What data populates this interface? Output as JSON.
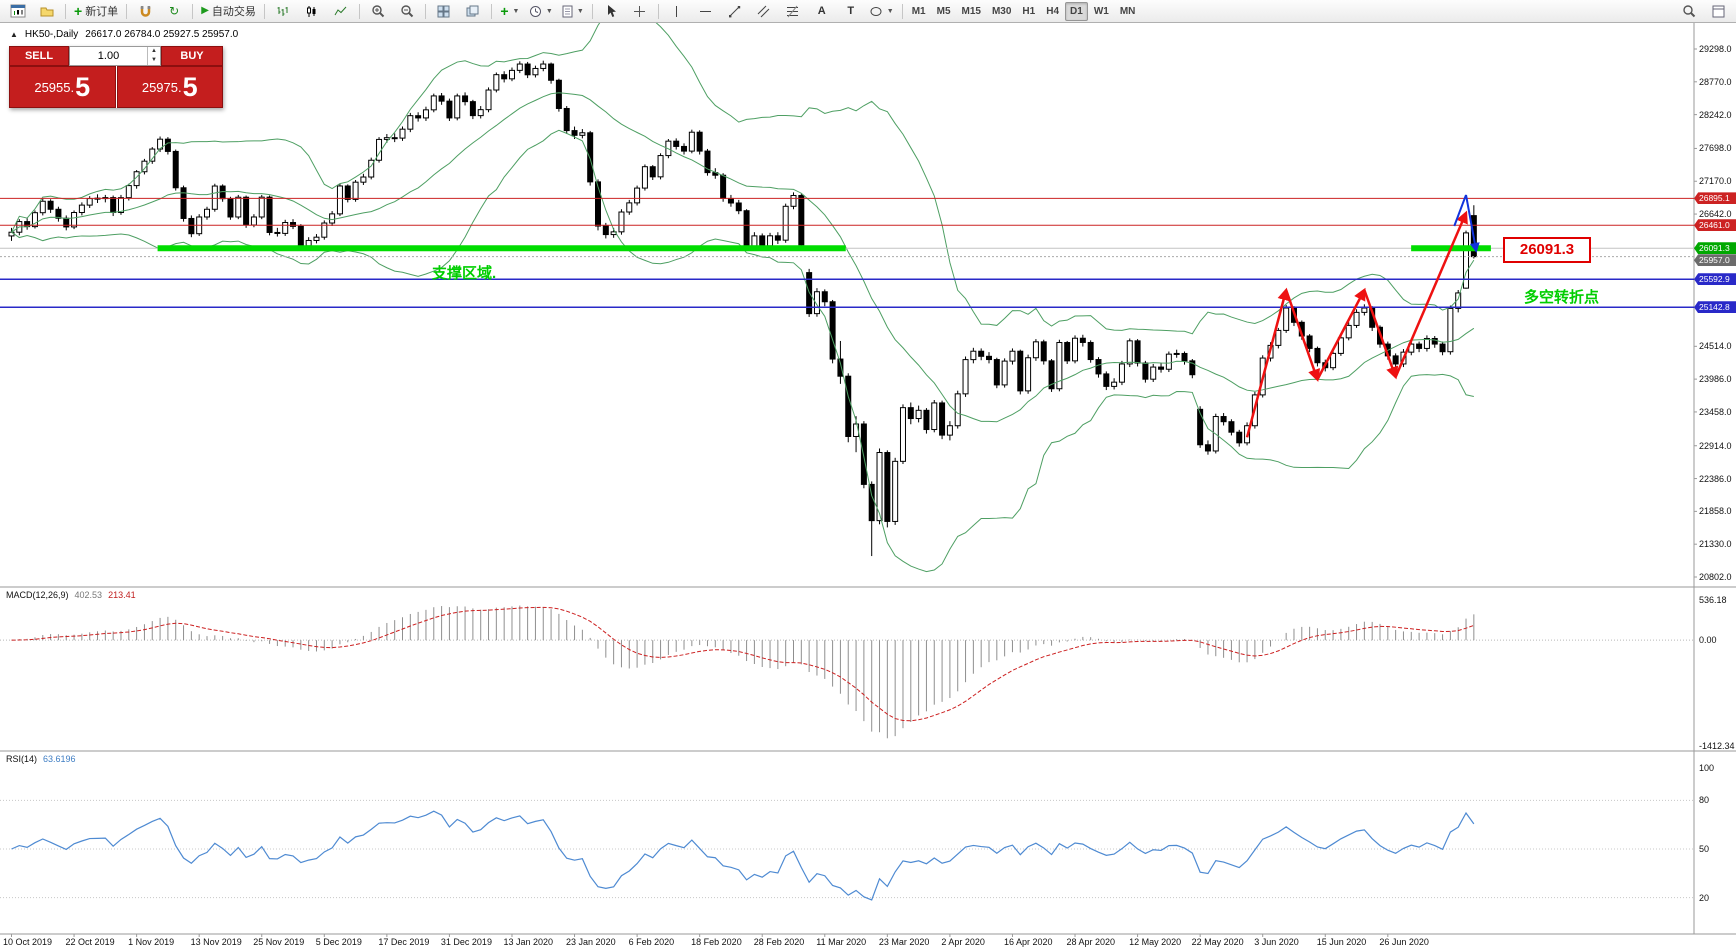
{
  "toolbar": {
    "new_order_label": "新订单",
    "auto_trading_label": "自动交易",
    "timeframes": [
      "M1",
      "M5",
      "M15",
      "M30",
      "H1",
      "H4",
      "D1",
      "W1",
      "MN"
    ],
    "active_timeframe": "D1"
  },
  "symbol_bar": {
    "symbol": "HK50-,Daily",
    "ohlc": "26617.0 26784.0 25927.5 25957.0"
  },
  "trade_panel": {
    "sell_label": "SELL",
    "buy_label": "BUY",
    "volume": "1.00",
    "sell_price_small": "25955.",
    "sell_price_big": "5",
    "buy_price_small": "25975.",
    "buy_price_big": "5"
  },
  "annotations": {
    "support_zone": "支撑区域.",
    "turning_point": "多空转折点",
    "price_callout": "26091.3"
  },
  "indicators": {
    "macd_name": "MACD(12,26,9)",
    "macd_value_main": "402.53",
    "macd_value_signal": "213.41",
    "macd_axis": [
      "536.18",
      "0.00",
      "-1412.34"
    ],
    "rsi_name": "RSI(14)",
    "rsi_value": "63.6196",
    "rsi_axis": [
      "100",
      "80",
      "50",
      "20"
    ]
  },
  "chart_data": {
    "type": "candlestick",
    "symbol": "HK50",
    "timeframe": "Daily",
    "price_axis": {
      "min": 20802.0,
      "max": 29298.0,
      "tick_labels": [
        "29298.0",
        "28770.0",
        "28242.0",
        "27698.0",
        "27170.0",
        "26642.0",
        "24514.0",
        "23986.0",
        "23458.0",
        "22914.0",
        "22386.0",
        "21858.0",
        "21330.0",
        "20802.0"
      ],
      "tags": [
        {
          "value": 26895.1,
          "label": "26895.1",
          "color": "#cc2222"
        },
        {
          "value": 26461.0,
          "label": "26461.0",
          "color": "#cc2222"
        },
        {
          "value": 26091.3,
          "label": "26091.3",
          "color": "#00a800"
        },
        {
          "value": 25957.0,
          "label": "25957.0",
          "color": "#6b6b6b"
        },
        {
          "value": 25592.9,
          "label": "25592.9",
          "color": "#2929c8"
        },
        {
          "value": 25142.8,
          "label": "25142.8",
          "color": "#2929c8"
        }
      ]
    },
    "hlines": [
      {
        "price": 26895.1,
        "color": "#cc2222",
        "width": 1
      },
      {
        "price": 26461.0,
        "color": "#cc2222",
        "width": 1
      },
      {
        "price": 26091.3,
        "color": "#c4c4c4",
        "width": 1
      },
      {
        "price": 25957.0,
        "color": "#aaaaaa",
        "width": 1,
        "dash": "2,2"
      },
      {
        "price": 25592.9,
        "color": "#2929c8",
        "width": 1.5
      },
      {
        "price": 25142.8,
        "color": "#2929c8",
        "width": 1.5
      }
    ],
    "support_segments": [
      {
        "price": 26091.3,
        "bar_start": 19,
        "bar_end": 107,
        "color": "#00dd00",
        "width": 6
      },
      {
        "price": 26091.3,
        "bar_start": 179.3,
        "bar_end": 189.5,
        "color": "#00dd00",
        "width": 6
      }
    ],
    "zigzag": [
      [
        158,
        23050
      ],
      [
        163,
        25420
      ],
      [
        167,
        23980
      ],
      [
        173,
        25420
      ],
      [
        177,
        24020
      ],
      [
        186,
        26660
      ]
    ],
    "zigzag_color": "#ee1111",
    "blue_arrow": [
      [
        184.5,
        26450
      ],
      [
        186,
        26950
      ],
      [
        187.3,
        26050
      ]
    ],
    "blue_arrow_color": "#1133dd",
    "bollinger": {
      "period": 20,
      "deviation": 2,
      "color": "#4e9f63"
    },
    "macd_range": {
      "max": 536.18,
      "min": -1412.34
    },
    "rsi_levels": [
      80,
      50,
      20
    ],
    "date_every_n_bars": 8,
    "dates": [
      "10 Oct 2019",
      "22 Oct 2019",
      "1 Nov 2019",
      "13 Nov 2019",
      "25 Nov 2019",
      "5 Dec 2019",
      "17 Dec 2019",
      "31 Dec 2019",
      "13 Jan 2020",
      "23 Jan 2020",
      "6 Feb 2020",
      "18 Feb 2020",
      "28 Feb 2020",
      "11 Mar 2020",
      "23 Mar 2020",
      "2 Apr 2020",
      "16 Apr 2020",
      "28 Apr 2020",
      "12 May 2020",
      "22 May 2020",
      "3 Jun 2020",
      "15 Jun 2020",
      "26 Jun 2020"
    ],
    "candles": [
      [
        26290,
        26420,
        26210,
        26350
      ],
      [
        26350,
        26560,
        26300,
        26521
      ],
      [
        26521,
        26585,
        26390,
        26440
      ],
      [
        26440,
        26700,
        26410,
        26664
      ],
      [
        26664,
        26890,
        26620,
        26848
      ],
      [
        26848,
        26880,
        26660,
        26719
      ],
      [
        26719,
        26760,
        26520,
        26575
      ],
      [
        26575,
        26620,
        26380,
        26435
      ],
      [
        26435,
        26700,
        26400,
        26667
      ],
      [
        26667,
        26830,
        26620,
        26786
      ],
      [
        26786,
        26930,
        26740,
        26891
      ],
      [
        26891,
        26960,
        26820,
        26898
      ],
      [
        26898,
        26950,
        26830,
        26907
      ],
      [
        26907,
        26940,
        26610,
        26667
      ],
      [
        26667,
        26950,
        26630,
        26906
      ],
      [
        26906,
        27130,
        26860,
        27100
      ],
      [
        27100,
        27350,
        27050,
        27323
      ],
      [
        27323,
        27530,
        27280,
        27493
      ],
      [
        27493,
        27720,
        27450,
        27688
      ],
      [
        27688,
        27890,
        27640,
        27847
      ],
      [
        27847,
        27880,
        27600,
        27650
      ],
      [
        27650,
        27680,
        27020,
        27065
      ],
      [
        27065,
        27100,
        26520,
        26571
      ],
      [
        26571,
        26620,
        26270,
        26326
      ],
      [
        26326,
        26640,
        26290,
        26595
      ],
      [
        26595,
        26760,
        26550,
        26719
      ],
      [
        26719,
        27130,
        26680,
        27093
      ],
      [
        27093,
        27120,
        26840,
        26889
      ],
      [
        26889,
        26920,
        26550,
        26595
      ],
      [
        26595,
        26950,
        26560,
        26913
      ],
      [
        26913,
        26940,
        26420,
        26466
      ],
      [
        26466,
        26640,
        26430,
        26595
      ],
      [
        26595,
        26950,
        26560,
        26914
      ],
      [
        26914,
        26940,
        26300,
        26346
      ],
      [
        26346,
        26420,
        26280,
        26331
      ],
      [
        26331,
        26550,
        26290,
        26506
      ],
      [
        26506,
        26560,
        26400,
        26444
      ],
      [
        26444,
        26480,
        26080,
        26130
      ],
      [
        26130,
        26270,
        26090,
        26217
      ],
      [
        26217,
        26320,
        26170,
        26270
      ],
      [
        26270,
        26540,
        26230,
        26498
      ],
      [
        26498,
        26690,
        26450,
        26645
      ],
      [
        26645,
        27130,
        26610,
        27094
      ],
      [
        27094,
        27120,
        26830,
        26878
      ],
      [
        26878,
        27190,
        26840,
        27155
      ],
      [
        27155,
        27290,
        27110,
        27238
      ],
      [
        27238,
        27550,
        27200,
        27508
      ],
      [
        27508,
        27880,
        27470,
        27843
      ],
      [
        27843,
        27930,
        27790,
        27871
      ],
      [
        27871,
        27940,
        27800,
        27864
      ],
      [
        27864,
        28050,
        27820,
        28008
      ],
      [
        28008,
        28270,
        27960,
        28225
      ],
      [
        28225,
        28280,
        28130,
        28189
      ],
      [
        28189,
        28370,
        28140,
        28319
      ],
      [
        28319,
        28580,
        28280,
        28543
      ],
      [
        28543,
        28590,
        28400,
        28459
      ],
      [
        28459,
        28500,
        28140,
        28189
      ],
      [
        28189,
        28580,
        28150,
        28543
      ],
      [
        28543,
        28600,
        28390,
        28451
      ],
      [
        28451,
        28480,
        28170,
        28226
      ],
      [
        28226,
        28380,
        28180,
        28322
      ],
      [
        28322,
        28680,
        28280,
        28638
      ],
      [
        28638,
        28920,
        28600,
        28885
      ],
      [
        28885,
        28940,
        28760,
        28818
      ],
      [
        28818,
        29000,
        28780,
        28954
      ],
      [
        28954,
        29100,
        28910,
        29056
      ],
      [
        29056,
        29090,
        28830,
        28883
      ],
      [
        28883,
        29030,
        28840,
        28985
      ],
      [
        28985,
        29110,
        28940,
        29056
      ],
      [
        29056,
        29080,
        28740,
        28795
      ],
      [
        28795,
        28820,
        28290,
        28341
      ],
      [
        28341,
        28380,
        27930,
        27985
      ],
      [
        27985,
        28050,
        27850,
        27909
      ],
      [
        27909,
        28010,
        27860,
        27950
      ],
      [
        27950,
        27980,
        27100,
        27160
      ],
      [
        27160,
        27200,
        26380,
        26449
      ],
      [
        26449,
        26500,
        26250,
        26312
      ],
      [
        26312,
        26420,
        26260,
        26356
      ],
      [
        26356,
        26720,
        26310,
        26675
      ],
      [
        26675,
        26870,
        26630,
        26822
      ],
      [
        26822,
        27100,
        26780,
        27060
      ],
      [
        27060,
        27440,
        27020,
        27404
      ],
      [
        27404,
        27430,
        27190,
        27241
      ],
      [
        27241,
        27620,
        27200,
        27583
      ],
      [
        27583,
        27850,
        27540,
        27815
      ],
      [
        27815,
        27860,
        27680,
        27730
      ],
      [
        27730,
        27780,
        27600,
        27655
      ],
      [
        27655,
        28000,
        27620,
        27959
      ],
      [
        27959,
        27990,
        27600,
        27655
      ],
      [
        27655,
        27690,
        27260,
        27309
      ],
      [
        27309,
        27380,
        27210,
        27267
      ],
      [
        27267,
        27300,
        26840,
        26893
      ],
      [
        26893,
        26950,
        26760,
        26820
      ],
      [
        26820,
        26870,
        26640,
        26696
      ],
      [
        26696,
        26720,
        26080,
        26129
      ],
      [
        26129,
        26350,
        26060,
        26291
      ],
      [
        26291,
        26330,
        26080,
        26130
      ],
      [
        26130,
        26340,
        26090,
        26292
      ],
      [
        26292,
        26350,
        26160,
        26222
      ],
      [
        26222,
        26810,
        26180,
        26767
      ],
      [
        26767,
        26990,
        26720,
        26941
      ],
      [
        26941,
        26970,
        26090,
        26146
      ],
      [
        25700,
        25760,
        24987,
        25040
      ],
      [
        25040,
        25450,
        24990,
        25392
      ],
      [
        25392,
        25430,
        25160,
        25231
      ],
      [
        25231,
        25260,
        24240,
        24309
      ],
      [
        24309,
        24600,
        23910,
        24033
      ],
      [
        24033,
        24080,
        22970,
        23063
      ],
      [
        23063,
        23390,
        22810,
        23264
      ],
      [
        23264,
        23310,
        22230,
        22292
      ],
      [
        22292,
        22340,
        21139,
        21709
      ],
      [
        21709,
        22870,
        21650,
        22805
      ],
      [
        22805,
        22840,
        21600,
        21696
      ],
      [
        21696,
        22720,
        21640,
        22663
      ],
      [
        22663,
        23580,
        22620,
        23527
      ],
      [
        23527,
        23610,
        23260,
        23352
      ],
      [
        23352,
        23560,
        23290,
        23484
      ],
      [
        23484,
        23520,
        23110,
        23175
      ],
      [
        23175,
        23650,
        23130,
        23603
      ],
      [
        23603,
        23640,
        23020,
        23085
      ],
      [
        23085,
        23310,
        23000,
        23236
      ],
      [
        23236,
        23800,
        23190,
        23749
      ],
      [
        23749,
        24350,
        23700,
        24300
      ],
      [
        24300,
        24490,
        24240,
        24435
      ],
      [
        24435,
        24480,
        24290,
        24353
      ],
      [
        24353,
        24420,
        24240,
        24301
      ],
      [
        24301,
        24330,
        23840,
        23893
      ],
      [
        23893,
        24320,
        23850,
        24276
      ],
      [
        24276,
        24480,
        24220,
        24435
      ],
      [
        24435,
        24460,
        23740,
        23797
      ],
      [
        23797,
        24380,
        23750,
        24330
      ],
      [
        24330,
        24630,
        24280,
        24586
      ],
      [
        24586,
        24620,
        24220,
        24280
      ],
      [
        24280,
        24310,
        23780,
        23831
      ],
      [
        23831,
        24620,
        23790,
        24575
      ],
      [
        24575,
        24600,
        24230,
        24280
      ],
      [
        24280,
        24690,
        24240,
        24644
      ],
      [
        24644,
        24700,
        24510,
        24576
      ],
      [
        24576,
        24610,
        24250,
        24301
      ],
      [
        24301,
        24340,
        24010,
        24070
      ],
      [
        24070,
        24110,
        23810,
        23869
      ],
      [
        23869,
        24000,
        23820,
        23937
      ],
      [
        23937,
        24280,
        23890,
        24230
      ],
      [
        24230,
        24640,
        24180,
        24602
      ],
      [
        24602,
        24630,
        24190,
        24245
      ],
      [
        24245,
        24280,
        23930,
        23985
      ],
      [
        23985,
        24230,
        23940,
        24180
      ],
      [
        24180,
        24250,
        24090,
        24145
      ],
      [
        24145,
        24430,
        24100,
        24388
      ],
      [
        24388,
        24460,
        24330,
        24399
      ],
      [
        24399,
        24430,
        24220,
        24280
      ],
      [
        24280,
        24310,
        24000,
        24057
      ],
      [
        23500,
        23550,
        22880,
        22930
      ],
      [
        22930,
        23000,
        22770,
        22830
      ],
      [
        22830,
        23430,
        22790,
        23384
      ],
      [
        23384,
        23440,
        23240,
        23301
      ],
      [
        23301,
        23340,
        23080,
        23132
      ],
      [
        23132,
        23170,
        22900,
        22961
      ],
      [
        22961,
        23290,
        22920,
        23236
      ],
      [
        23236,
        23780,
        23190,
        23732
      ],
      [
        23732,
        24370,
        23690,
        24325
      ],
      [
        24325,
        24580,
        24270,
        24529
      ],
      [
        24529,
        24810,
        24480,
        24770
      ],
      [
        24770,
        25180,
        24730,
        25130
      ],
      [
        25130,
        25160,
        24840,
        24900
      ],
      [
        24900,
        24930,
        24620,
        24680
      ],
      [
        24680,
        24710,
        24420,
        24480
      ],
      [
        24480,
        24510,
        24190,
        24250
      ],
      [
        24250,
        24300,
        24110,
        24170
      ],
      [
        24170,
        24450,
        24130,
        24400
      ],
      [
        24400,
        24700,
        24360,
        24650
      ],
      [
        24650,
        24900,
        24610,
        24850
      ],
      [
        24850,
        25110,
        24810,
        25060
      ],
      [
        25060,
        25190,
        25010,
        25130
      ],
      [
        25130,
        25160,
        24760,
        24820
      ],
      [
        24820,
        24850,
        24490,
        24550
      ],
      [
        24550,
        24590,
        24300,
        24360
      ],
      [
        24360,
        24400,
        24170,
        24230
      ],
      [
        24230,
        24470,
        24180,
        24420
      ],
      [
        24420,
        24600,
        24370,
        24550
      ],
      [
        24550,
        24590,
        24420,
        24480
      ],
      [
        24480,
        24690,
        24430,
        24640
      ],
      [
        24640,
        24680,
        24490,
        24550
      ],
      [
        24550,
        24590,
        24370,
        24427
      ],
      [
        24427,
        25170,
        24380,
        25124
      ],
      [
        25124,
        25420,
        25060,
        25373
      ],
      [
        25450,
        26376,
        25440,
        26339
      ],
      [
        26617,
        26784,
        25927.5,
        25957
      ]
    ]
  }
}
